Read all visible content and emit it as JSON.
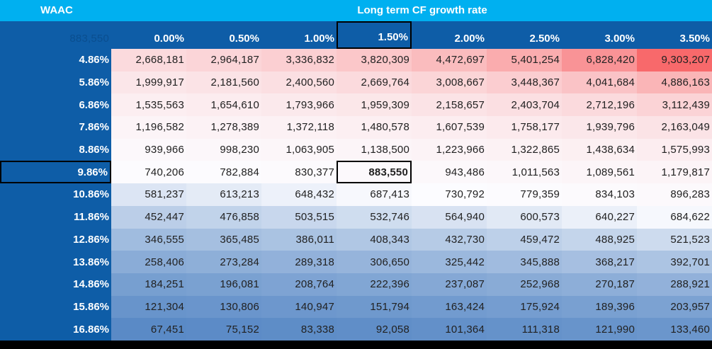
{
  "table": {
    "row_axis_label": "WAAC",
    "col_axis_label": "Long term CF growth rate",
    "corner_value": "883,550",
    "col_headers": [
      "0.00%",
      "0.50%",
      "1.00%",
      "1.50%",
      "2.00%",
      "2.50%",
      "3.00%",
      "3.50%"
    ],
    "row_headers": [
      "4.86%",
      "5.86%",
      "6.86%",
      "7.86%",
      "8.86%",
      "9.86%",
      "10.86%",
      "11.86%",
      "12.86%",
      "13.86%",
      "14.86%",
      "15.86%",
      "16.86%"
    ],
    "values": [
      [
        2668181,
        2964187,
        3336832,
        3820309,
        4472697,
        5401254,
        6828420,
        9303207
      ],
      [
        1999917,
        2181560,
        2400560,
        2669764,
        3008667,
        3448367,
        4041684,
        4886163
      ],
      [
        1535563,
        1654610,
        1793966,
        1959309,
        2158657,
        2403704,
        2712196,
        3112439
      ],
      [
        1196582,
        1278389,
        1372118,
        1480578,
        1607539,
        1758177,
        1939796,
        2163049
      ],
      [
        939966,
        998230,
        1063905,
        1138500,
        1223966,
        1322865,
        1438634,
        1575993
      ],
      [
        740206,
        782884,
        830377,
        883550,
        943486,
        1011563,
        1089561,
        1179817
      ],
      [
        581237,
        613213,
        648432,
        687413,
        730792,
        779359,
        834103,
        896283
      ],
      [
        452447,
        476858,
        503515,
        532746,
        564940,
        600573,
        640227,
        684622
      ],
      [
        346555,
        365485,
        386011,
        408343,
        432730,
        459472,
        488925,
        521523
      ],
      [
        258406,
        273284,
        289318,
        306650,
        325442,
        345888,
        368217,
        392701
      ],
      [
        184251,
        196081,
        208764,
        222396,
        237087,
        252968,
        270187,
        288921
      ],
      [
        121304,
        130806,
        140947,
        151794,
        163424,
        175924,
        189396,
        203957
      ],
      [
        67451,
        75152,
        83338,
        92058,
        101364,
        111318,
        121990,
        133460
      ]
    ]
  },
  "selection": {
    "col_index": 3,
    "row_index": 5,
    "col_header": "1.50%",
    "row_header": "9.86%",
    "cell_value": "883,550"
  },
  "colors": {
    "top_band": "#00B0F0",
    "header_blue": "#0E5DA7",
    "scale_low_blue": "#5A8AC6",
    "scale_mid_white": "#FCFCFF",
    "scale_high_red": "#F8696B",
    "cell_text": "#212121",
    "header_text": "#FFFFFF",
    "frame": "#000000"
  }
}
